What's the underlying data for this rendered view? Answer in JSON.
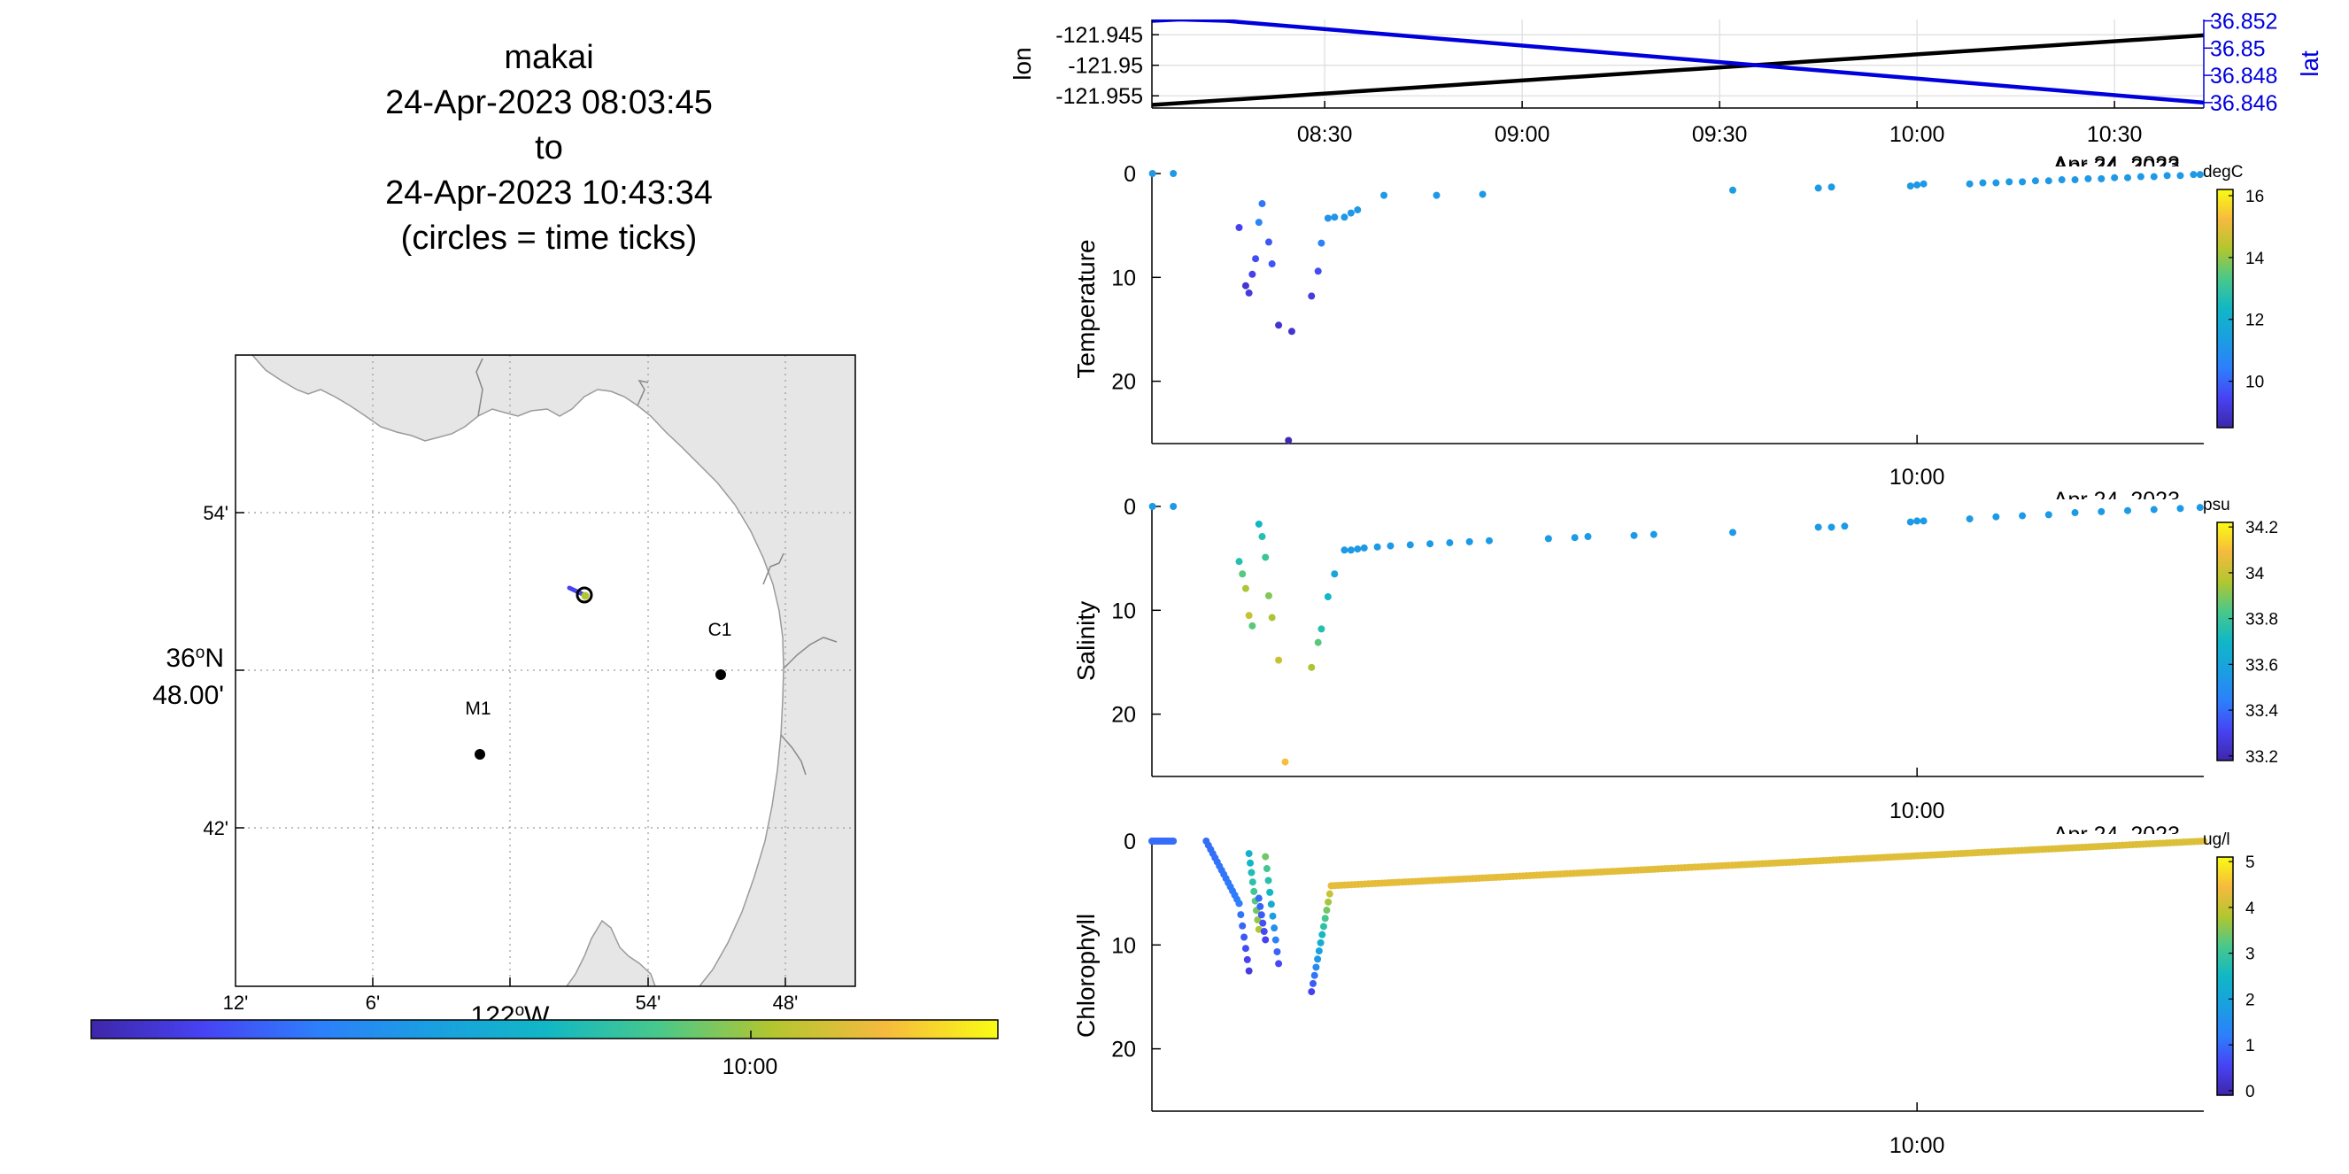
{
  "title": {
    "lines": [
      "makai",
      "24-Apr-2023 08:03:45",
      "to",
      "24-Apr-2023 10:43:34",
      "(circles = time ticks)"
    ]
  },
  "map": {
    "lat_ticks": [
      "54'",
      "42'"
    ],
    "lat_center_deg": "36",
    "lat_center_hem": "N",
    "lat_center_min": "48.00'",
    "lon_ticks": [
      "12'",
      "6'",
      "54'",
      "48'"
    ],
    "lon_center_deg": "122",
    "lon_center_hem": "W",
    "stations": [
      {
        "name": "C1"
      },
      {
        "name": "M1"
      }
    ],
    "time_colorbar": {
      "tick_label": "10:00",
      "tick_time": "10:00"
    }
  },
  "chart_data": [
    {
      "type": "line",
      "name": "position",
      "x_ticks": [
        "08:30",
        "09:00",
        "09:30",
        "10:00",
        "10:30"
      ],
      "x_range": [
        "08:03:45",
        "10:43:34"
      ],
      "ylabel_left": "lon",
      "ylabel_right": "lat",
      "left_ticks": [
        "-121.945",
        "-121.95",
        "-121.955"
      ],
      "left_tick_values": [
        -121.945,
        -121.95,
        -121.955
      ],
      "left_range": [
        -121.957,
        -121.9425
      ],
      "right_ticks": [
        "36.852",
        "36.85",
        "36.848",
        "36.846"
      ],
      "right_tick_values": [
        36.852,
        36.85,
        36.848,
        36.846
      ],
      "right_range": [
        36.8456,
        36.8521
      ],
      "series": [
        {
          "name": "lon",
          "color": "#000000",
          "x": [
            "08:03:45",
            "10:43:34"
          ],
          "y": [
            -121.9565,
            -121.9451
          ]
        },
        {
          "name": "lat",
          "color": "#0000dd",
          "x": [
            "08:03:45",
            "08:08",
            "08:15",
            "10:43:34"
          ],
          "y": [
            36.852,
            36.8521,
            36.852,
            36.846
          ]
        }
      ],
      "date_label": "Apr 24, 2023",
      "grid": true
    },
    {
      "type": "scatter",
      "ylabel": "Temperature",
      "y_ticks": [
        "0",
        "10",
        "20"
      ],
      "ylim": [
        0,
        26
      ],
      "y_reversed": true,
      "x_ticks": [
        "10:00"
      ],
      "date_label": "Apr 24, 2023",
      "colorbar": {
        "unit": "degC",
        "ticks": [
          "16",
          "14",
          "12",
          "10"
        ],
        "tick_values": [
          16,
          14,
          12,
          10
        ],
        "range": [
          8.5,
          16.2
        ]
      },
      "points_time": [
        "08:03:50",
        "08:07:00",
        "08:17:00",
        "08:18:00",
        "08:18:30",
        "08:19:00",
        "08:19:30",
        "08:20:00",
        "08:20:30",
        "08:21:30",
        "08:22:00",
        "08:23:00",
        "08:24:30",
        "08:25:00",
        "08:28:00",
        "08:29:00",
        "08:29:30",
        "08:30:30",
        "08:31:30",
        "08:33:00",
        "08:34:00",
        "08:35:00",
        "08:39:00",
        "08:47:00",
        "08:54:00",
        "09:32:00",
        "09:45:00",
        "09:47:00",
        "09:59:00",
        "10:00:00",
        "10:01:00",
        "10:08:00",
        "10:10:00",
        "10:12:00",
        "10:14:00",
        "10:16:00",
        "10:18:00",
        "10:20:00",
        "10:22:00",
        "10:24:00",
        "10:26:00",
        "10:28:00",
        "10:30:00",
        "10:32:00",
        "10:34:00",
        "10:36:00",
        "10:38:00",
        "10:40:00",
        "10:42:00",
        "10:43:00"
      ],
      "points_y": [
        0,
        0,
        5.2,
        10.8,
        11.5,
        9.7,
        8.2,
        4.7,
        2.9,
        6.6,
        8.7,
        14.6,
        25.7,
        15.2,
        11.8,
        9.4,
        6.7,
        4.3,
        4.2,
        4.2,
        3.8,
        3.5,
        2.1,
        2.1,
        2.0,
        1.6,
        1.4,
        1.3,
        1.2,
        1.1,
        1.0,
        1.0,
        0.9,
        0.9,
        0.8,
        0.8,
        0.7,
        0.7,
        0.6,
        0.6,
        0.5,
        0.5,
        0.4,
        0.4,
        0.3,
        0.3,
        0.2,
        0.2,
        0.1,
        0.1
      ],
      "points_c": [
        11.2,
        11.2,
        9.4,
        9.0,
        9.2,
        9.4,
        9.6,
        10.6,
        10.3,
        9.8,
        9.7,
        9.0,
        8.6,
        9.0,
        9.2,
        9.6,
        10.5,
        11.0,
        11.1,
        11.2,
        11.2,
        11.2,
        11.2,
        11.2,
        11.2,
        11.3,
        11.2,
        11.2,
        11.2,
        11.2,
        11.2,
        11.2,
        11.2,
        11.2,
        11.2,
        11.2,
        11.2,
        11.2,
        11.2,
        11.2,
        11.2,
        11.2,
        11.2,
        11.2,
        11.2,
        11.2,
        11.2,
        11.2,
        11.2,
        11.2
      ]
    },
    {
      "type": "scatter",
      "ylabel": "Salinity",
      "y_ticks": [
        "0",
        "10",
        "20"
      ],
      "ylim": [
        0,
        26
      ],
      "y_reversed": true,
      "x_ticks": [
        "10:00"
      ],
      "date_label": "Apr 24, 2023",
      "colorbar": {
        "unit": "psu",
        "ticks": [
          "34.2",
          "34",
          "33.8",
          "33.6",
          "33.4",
          "33.2"
        ],
        "tick_values": [
          34.2,
          34.0,
          33.8,
          33.6,
          33.4,
          33.2
        ],
        "range": [
          33.18,
          34.22
        ]
      },
      "points_time": [
        "08:03:50",
        "08:07:00",
        "08:17:00",
        "08:17:30",
        "08:18:00",
        "08:18:30",
        "08:19:00",
        "08:20:00",
        "08:20:30",
        "08:21:00",
        "08:21:30",
        "08:22:00",
        "08:23:00",
        "08:24:00",
        "08:28:00",
        "08:29:00",
        "08:29:30",
        "08:30:30",
        "08:31:30",
        "08:33:00",
        "08:34:00",
        "08:35:00",
        "08:36:00",
        "08:38:00",
        "08:40:00",
        "08:43:00",
        "08:46:00",
        "08:49:00",
        "08:52:00",
        "08:55:00",
        "09:04:00",
        "09:08:00",
        "09:10:00",
        "09:17:00",
        "09:20:00",
        "09:32:00",
        "09:45:00",
        "09:47:00",
        "09:49:00",
        "09:59:00",
        "10:00:00",
        "10:01:00",
        "10:08:00",
        "10:12:00",
        "10:16:00",
        "10:20:00",
        "10:24:00",
        "10:28:00",
        "10:32:00",
        "10:36:00",
        "10:40:00",
        "10:43:00"
      ],
      "points_y": [
        0,
        0,
        5.3,
        6.5,
        7.9,
        10.5,
        11.5,
        1.7,
        2.9,
        4.9,
        8.6,
        10.7,
        14.8,
        24.6,
        15.5,
        13.1,
        11.8,
        8.7,
        6.5,
        4.2,
        4.2,
        4.1,
        4.0,
        3.9,
        3.8,
        3.7,
        3.6,
        3.5,
        3.4,
        3.3,
        3.1,
        3.0,
        2.9,
        2.8,
        2.7,
        2.5,
        2.0,
        2.0,
        1.9,
        1.5,
        1.4,
        1.4,
        1.2,
        1.0,
        0.9,
        0.8,
        0.6,
        0.5,
        0.4,
        0.3,
        0.2,
        0.1
      ],
      "points_c": [
        33.55,
        33.55,
        33.75,
        33.85,
        33.95,
        34.0,
        33.85,
        33.7,
        33.75,
        33.8,
        33.9,
        33.95,
        34.0,
        34.1,
        33.95,
        33.85,
        33.75,
        33.7,
        33.6,
        33.55,
        33.55,
        33.55,
        33.55,
        33.55,
        33.55,
        33.55,
        33.55,
        33.55,
        33.55,
        33.55,
        33.55,
        33.55,
        33.55,
        33.55,
        33.55,
        33.55,
        33.55,
        33.55,
        33.55,
        33.55,
        33.55,
        33.55,
        33.55,
        33.55,
        33.55,
        33.55,
        33.55,
        33.55,
        33.55,
        33.55,
        33.55,
        33.55
      ]
    },
    {
      "type": "scatter",
      "ylabel": "Chlorophyll",
      "y_ticks": [
        "0",
        "10",
        "20"
      ],
      "ylim": [
        0,
        26
      ],
      "y_reversed": true,
      "x_ticks": [
        "10:00"
      ],
      "date_label": "Apr 24, 2023",
      "colorbar": {
        "unit": "ug/l",
        "ticks": [
          "5",
          "4",
          "3",
          "2",
          "1",
          "0"
        ],
        "tick_values": [
          5,
          4,
          3,
          2,
          1,
          0
        ],
        "range": [
          -0.1,
          5.1
        ]
      },
      "profiles": [
        {
          "t0": "08:03:45",
          "t1": "08:07:00",
          "y0": 0,
          "y1": 0,
          "n": 14,
          "c0": 1.0,
          "c1": 1.0
        },
        {
          "t0": "08:12:00",
          "t1": "08:17:00",
          "y0": 0,
          "y1": 6,
          "n": 16,
          "c0": 1.0,
          "c1": 1.2
        },
        {
          "t0": "08:17:00",
          "t1": "08:18:30",
          "y0": 6,
          "y1": 12.5,
          "n": 7,
          "c0": 1.2,
          "c1": 0.4
        },
        {
          "t0": "08:18:30",
          "t1": "08:20:00",
          "y0": 1.2,
          "y1": 8.5,
          "n": 9,
          "c0": 2.3,
          "c1": 3.8
        },
        {
          "t0": "08:20:00",
          "t1": "08:21:00",
          "y0": 5.5,
          "y1": 9.5,
          "n": 6,
          "c0": 1.0,
          "c1": 0.5
        },
        {
          "t0": "08:21:00",
          "t1": "08:23:00",
          "y0": 1.5,
          "y1": 11.8,
          "n": 10,
          "c0": 3.4,
          "c1": 0.6
        },
        {
          "t0": "08:28:00",
          "t1": "08:31:00",
          "y0": 14.5,
          "y1": 4.3,
          "n": 14,
          "c0": 0.5,
          "c1": 4.3
        },
        {
          "t0": "08:31:00",
          "t1": "10:43:34",
          "y0": 4.3,
          "y1": 0.0,
          "n": 260,
          "c0": 4.3,
          "c1": 4.2
        }
      ]
    }
  ]
}
